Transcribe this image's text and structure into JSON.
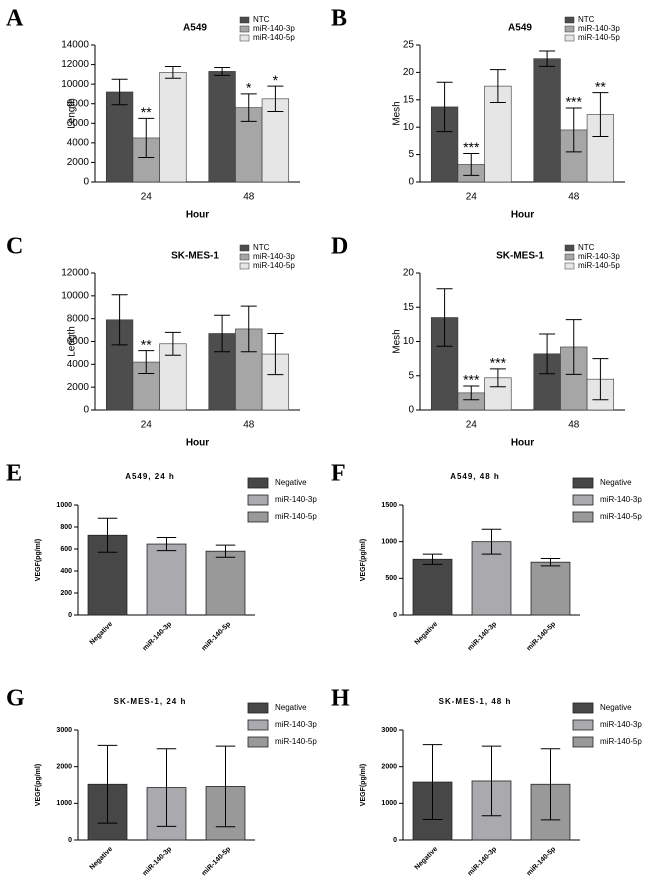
{
  "chart_data": [
    {
      "type": "bar",
      "panel": "A",
      "title": "A549",
      "ylabel": "Length",
      "xlabel": "Hour",
      "categories": [
        "24",
        "48"
      ],
      "series": [
        {
          "name": "NTC",
          "color": "#4d4d4d",
          "values": [
            9200,
            11300
          ],
          "errors": [
            1300,
            400
          ],
          "significance": [
            null,
            null
          ]
        },
        {
          "name": "miR-140-3p",
          "color": "#a6a6a6",
          "values": [
            4500,
            7600
          ],
          "errors": [
            2000,
            1400
          ],
          "significance": [
            "**",
            "*"
          ]
        },
        {
          "name": "miR-140-5p",
          "color": "#e6e6e6",
          "values": [
            11200,
            8500
          ],
          "errors": [
            600,
            1300
          ],
          "significance": [
            null,
            "*"
          ]
        }
      ],
      "ylim": [
        0,
        14000
      ],
      "yticks": [
        0,
        2000,
        4000,
        6000,
        8000,
        10000,
        12000,
        14000
      ]
    },
    {
      "type": "bar",
      "panel": "B",
      "title": "A549",
      "ylabel": "Mesh",
      "xlabel": "Hour",
      "categories": [
        "24",
        "48"
      ],
      "series": [
        {
          "name": "NTC",
          "color": "#4d4d4d",
          "values": [
            13.7,
            22.5
          ],
          "errors": [
            4.5,
            1.4
          ],
          "significance": [
            null,
            null
          ]
        },
        {
          "name": "miR-140-3p",
          "color": "#a6a6a6",
          "values": [
            3.2,
            9.5
          ],
          "errors": [
            2,
            4
          ],
          "significance": [
            "***",
            "***"
          ]
        },
        {
          "name": "miR-140-5p",
          "color": "#e6e6e6",
          "values": [
            17.5,
            12.3
          ],
          "errors": [
            3,
            4
          ],
          "significance": [
            null,
            "**"
          ]
        }
      ],
      "ylim": [
        0,
        25
      ],
      "yticks": [
        0,
        5,
        10,
        15,
        20,
        25
      ]
    },
    {
      "type": "bar",
      "panel": "C",
      "title": "SK-MES-1",
      "ylabel": "Length",
      "xlabel": "Hour",
      "categories": [
        "24",
        "48"
      ],
      "series": [
        {
          "name": "NTC",
          "color": "#4d4d4d",
          "values": [
            7900,
            6700
          ],
          "errors": [
            2200,
            1600
          ],
          "significance": [
            null,
            null
          ]
        },
        {
          "name": "miR-140-3p",
          "color": "#a6a6a6",
          "values": [
            4200,
            7100
          ],
          "errors": [
            1000,
            2000
          ],
          "significance": [
            "**",
            null
          ]
        },
        {
          "name": "miR-140-5p",
          "color": "#e6e6e6",
          "values": [
            5800,
            4900
          ],
          "errors": [
            1000,
            1800
          ],
          "significance": [
            null,
            null
          ]
        }
      ],
      "ylim": [
        0,
        12000
      ],
      "yticks": [
        0,
        2000,
        4000,
        6000,
        8000,
        10000,
        12000
      ]
    },
    {
      "type": "bar",
      "panel": "D",
      "title": "SK-MES-1",
      "ylabel": "Mesh",
      "xlabel": "Hour",
      "categories": [
        "24",
        "48"
      ],
      "series": [
        {
          "name": "NTC",
          "color": "#4d4d4d",
          "values": [
            13.5,
            8.2
          ],
          "errors": [
            4.2,
            2.9
          ],
          "significance": [
            null,
            null
          ]
        },
        {
          "name": "miR-140-3p",
          "color": "#a6a6a6",
          "values": [
            2.5,
            9.2
          ],
          "errors": [
            1,
            4
          ],
          "significance": [
            "***",
            null
          ]
        },
        {
          "name": "miR-140-5p",
          "color": "#e6e6e6",
          "values": [
            4.7,
            4.5
          ],
          "errors": [
            1.3,
            3
          ],
          "significance": [
            "***",
            null
          ]
        }
      ],
      "ylim": [
        0,
        20
      ],
      "yticks": [
        0,
        5,
        10,
        15,
        20
      ]
    },
    {
      "type": "bar",
      "panel": "E",
      "title": "A549, 24 h",
      "ylabel": "VEGF(pg/ml)",
      "categories": [
        "Negative",
        "miR-140-3p",
        "miR-140-5p"
      ],
      "values": [
        725,
        645,
        580
      ],
      "errors": [
        155,
        60,
        55
      ],
      "colors": [
        "#474747",
        "#a9a9ae",
        "#999999"
      ],
      "ylim": [
        0,
        1000
      ],
      "yticks": [
        0,
        200,
        400,
        600,
        800,
        1000
      ]
    },
    {
      "type": "bar",
      "panel": "F",
      "title": "A549, 48 h",
      "ylabel": "VEGF(pg/ml)",
      "categories": [
        "Negative",
        "miR-140-3p",
        "miR-140-5p"
      ],
      "values": [
        760,
        1000,
        720
      ],
      "errors": [
        70,
        170,
        50
      ],
      "colors": [
        "#474747",
        "#a9a9ae",
        "#999999"
      ],
      "ylim": [
        0,
        1500
      ],
      "yticks": [
        0,
        500,
        1000,
        1500
      ]
    },
    {
      "type": "bar",
      "panel": "G",
      "title": "SK-MES-1, 24 h",
      "ylabel": "VEGF(pg/ml)",
      "categories": [
        "Negative",
        "miR-140-3p",
        "miR-140-5p"
      ],
      "values": [
        1520,
        1430,
        1460
      ],
      "errors": [
        1060,
        1060,
        1100
      ],
      "colors": [
        "#474747",
        "#a9a9ae",
        "#999999"
      ],
      "ylim": [
        0,
        3000
      ],
      "yticks": [
        0,
        1000,
        2000,
        3000
      ]
    },
    {
      "type": "bar",
      "panel": "H",
      "title": "SK-MES-1, 48 h",
      "ylabel": "VEGF(pg/ml)",
      "categories": [
        "Negative",
        "miR-140-3p",
        "miR-140-5p"
      ],
      "values": [
        1580,
        1610,
        1520
      ],
      "errors": [
        1020,
        950,
        970
      ],
      "colors": [
        "#474747",
        "#a9a9ae",
        "#999999"
      ],
      "ylim": [
        0,
        3000
      ],
      "yticks": [
        0,
        1000,
        2000,
        3000
      ]
    }
  ]
}
